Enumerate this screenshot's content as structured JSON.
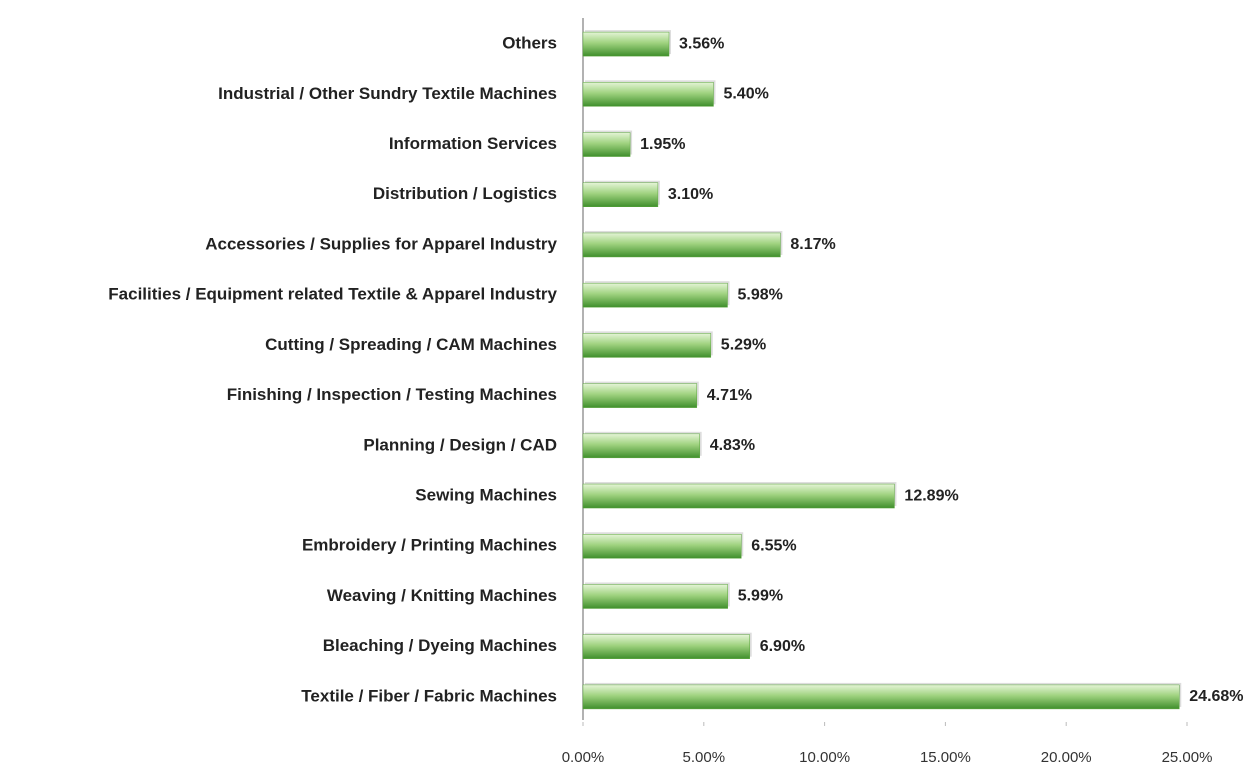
{
  "chart_data": {
    "type": "bar",
    "orientation": "horizontal",
    "categories": [
      "Others",
      "Industrial / Other Sundry Textile Machines",
      "Information Services",
      "Distribution / Logistics",
      "Accessories / Supplies for Apparel Industry",
      "Facilities / Equipment related Textile & Apparel Industry",
      "Cutting / Spreading / CAM Machines",
      "Finishing / Inspection / Testing Machines",
      "Planning / Design / CAD",
      "Sewing Machines",
      "Embroidery / Printing Machines",
      "Weaving / Knitting Machines",
      "Bleaching / Dyeing Machines",
      "Textile / Fiber / Fabric Machines"
    ],
    "values": [
      3.56,
      5.4,
      1.95,
      3.1,
      8.17,
      5.98,
      5.29,
      4.71,
      4.83,
      12.89,
      6.55,
      5.99,
      6.9,
      24.68
    ],
    "value_labels": [
      "3.56%",
      "5.40%",
      "1.95%",
      "3.10%",
      "8.17%",
      "5.98%",
      "5.29%",
      "4.71%",
      "4.83%",
      "12.89%",
      "6.55%",
      "5.99%",
      "6.90%",
      "24.68%"
    ],
    "color": "#5aa53c",
    "xlim": [
      0,
      25
    ],
    "xticks": [
      {
        "value": 0,
        "label": "0.00%"
      },
      {
        "value": 5,
        "label": "5.00%"
      },
      {
        "value": 10,
        "label": "10.00%"
      },
      {
        "value": 15,
        "label": "15.00%"
      },
      {
        "value": 20,
        "label": "20.00%"
      },
      {
        "value": 25,
        "label": "25.00%"
      }
    ],
    "grid": false
  }
}
